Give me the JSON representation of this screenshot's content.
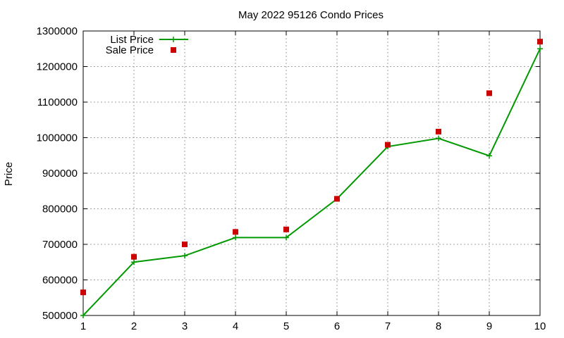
{
  "chart_data": {
    "type": "line",
    "title": "May 2022 95126 Condo Prices",
    "xlabel": "",
    "ylabel": "Price",
    "x": [
      1,
      2,
      3,
      4,
      5,
      6,
      7,
      8,
      9,
      10
    ],
    "xlim": [
      1,
      10
    ],
    "ylim": [
      500000,
      1300000
    ],
    "x_ticks": [
      1,
      2,
      3,
      4,
      5,
      6,
      7,
      8,
      9,
      10
    ],
    "y_ticks": [
      500000,
      600000,
      700000,
      800000,
      900000,
      1000000,
      1100000,
      1200000,
      1300000
    ],
    "grid": true,
    "legend_position": "top-left",
    "series": [
      {
        "name": "List Price",
        "style": "linespoints",
        "marker": "plus",
        "color": "#009900",
        "values": [
          500000,
          650000,
          668000,
          719000,
          719000,
          828000,
          975000,
          998000,
          949000,
          1250000
        ]
      },
      {
        "name": "Sale Price",
        "style": "points",
        "marker": "square",
        "color": "#cc0000",
        "values": [
          565000,
          665000,
          700000,
          735000,
          742000,
          828000,
          980000,
          1017000,
          1125000,
          1270000
        ]
      }
    ]
  }
}
